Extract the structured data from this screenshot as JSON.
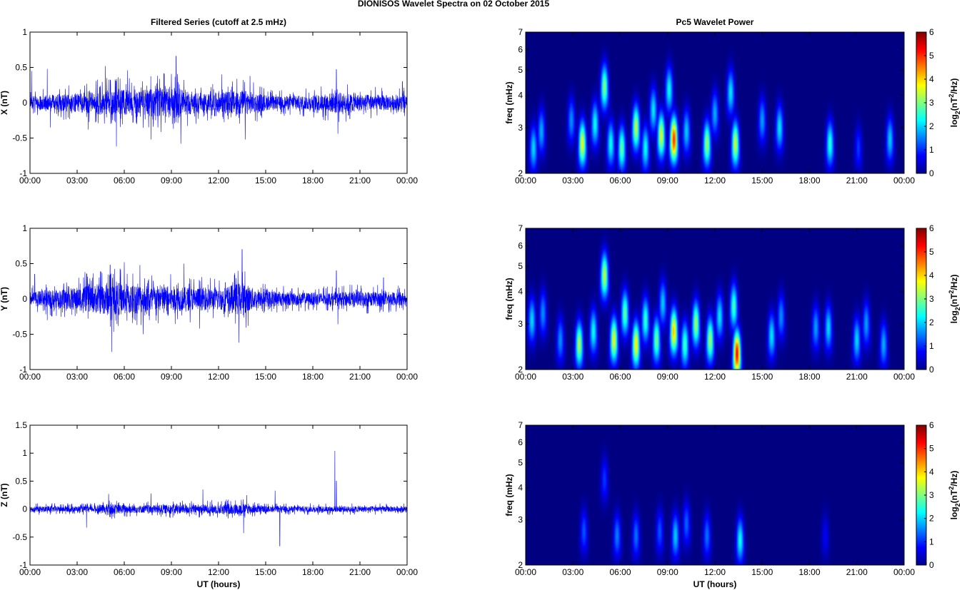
{
  "figure": {
    "title": "DIONISOS Wavelet Spectra on 02 October   2015",
    "left_title": "Filtered Series (cutoff at 2.5 mHz)",
    "right_title": "Pc5 Wavelet Power",
    "xlabel": "UT (hours)"
  },
  "colors": {
    "series_line": "#0000ff",
    "spectrogram_background": "#00008f",
    "colormap": "jet"
  },
  "chart_data": [
    {
      "type": "line",
      "panel": "X",
      "ylabel": "X (nT)",
      "ylim": [
        -1,
        1
      ],
      "yticks": [
        "1",
        "0.5",
        "0",
        "-0.5",
        "-1"
      ],
      "xlim": [
        0,
        24
      ],
      "xticks": [
        "00:00",
        "03:00",
        "06:00",
        "09:00",
        "12:00",
        "15:00",
        "18:00",
        "21:00",
        "00:00"
      ],
      "baseline_amplitude": 0.15,
      "activity": [
        [
          0,
          0.12
        ],
        [
          3,
          0.18
        ],
        [
          5,
          0.25
        ],
        [
          6,
          0.24
        ],
        [
          8,
          0.27
        ],
        [
          9.5,
          0.3
        ],
        [
          11,
          0.16
        ],
        [
          13.5,
          0.24
        ],
        [
          15.5,
          0.12
        ],
        [
          18,
          0.14
        ],
        [
          19.5,
          0.2
        ],
        [
          21,
          0.16
        ],
        [
          24,
          0.14
        ]
      ],
      "peaks": [
        [
          0.1,
          0.45
        ],
        [
          1.1,
          0.48
        ],
        [
          1.3,
          -0.35
        ],
        [
          3.7,
          -0.38
        ],
        [
          4.8,
          0.52
        ],
        [
          5.5,
          -0.62
        ],
        [
          6.2,
          0.46
        ],
        [
          7.7,
          -0.52
        ],
        [
          9.3,
          0.66
        ],
        [
          9.6,
          -0.58
        ],
        [
          12.2,
          0.4
        ],
        [
          13.7,
          -0.52
        ],
        [
          14,
          0.38
        ],
        [
          19.5,
          0.47
        ],
        [
          19.6,
          -0.44
        ],
        [
          23.7,
          0.3
        ]
      ]
    },
    {
      "type": "line",
      "panel": "Y",
      "ylabel": "Y (nT)",
      "ylim": [
        -1,
        1
      ],
      "yticks": [
        "1",
        "0.5",
        "0",
        "-0.5",
        "-1"
      ],
      "xlim": [
        0,
        24
      ],
      "xticks": [
        "00:00",
        "03:00",
        "06:00",
        "09:00",
        "12:00",
        "15:00",
        "18:00",
        "21:00",
        "00:00"
      ],
      "baseline_amplitude": 0.15,
      "activity": [
        [
          0,
          0.13
        ],
        [
          2,
          0.18
        ],
        [
          4,
          0.26
        ],
        [
          5,
          0.32
        ],
        [
          6,
          0.3
        ],
        [
          7.5,
          0.26
        ],
        [
          9,
          0.24
        ],
        [
          10.5,
          0.22
        ],
        [
          12,
          0.2
        ],
        [
          13.5,
          0.32
        ],
        [
          14.5,
          0.16
        ],
        [
          17,
          0.12
        ],
        [
          19.5,
          0.12
        ],
        [
          21,
          0.15
        ],
        [
          24,
          0.12
        ]
      ],
      "peaks": [
        [
          0.3,
          0.35
        ],
        [
          1.1,
          -0.3
        ],
        [
          3.5,
          0.38
        ],
        [
          5.2,
          -0.75
        ],
        [
          5.1,
          0.48
        ],
        [
          6.0,
          0.52
        ],
        [
          7.0,
          0.48
        ],
        [
          7.2,
          -0.5
        ],
        [
          9.8,
          0.5
        ],
        [
          10.8,
          -0.42
        ],
        [
          13.5,
          0.7
        ],
        [
          13.3,
          -0.62
        ],
        [
          19.5,
          0.4
        ],
        [
          19.6,
          -0.36
        ],
        [
          22.5,
          0.3
        ],
        [
          24,
          -0.15
        ]
      ]
    },
    {
      "type": "line",
      "panel": "Z",
      "ylabel": "Z (nT)",
      "ylim": [
        -1,
        1.5
      ],
      "yticks": [
        "1.5",
        "1",
        "0.5",
        "0",
        "-0.5",
        "-1"
      ],
      "xlim": [
        0,
        24
      ],
      "xticks": [
        "00:00",
        "03:00",
        "06:00",
        "09:00",
        "12:00",
        "15:00",
        "18:00",
        "21:00",
        "00:00"
      ],
      "xlabel": "UT (hours)",
      "baseline_amplitude": 0.06,
      "activity": [
        [
          0,
          0.07
        ],
        [
          4,
          0.07
        ],
        [
          5,
          0.12
        ],
        [
          7,
          0.09
        ],
        [
          9,
          0.11
        ],
        [
          10.5,
          0.1
        ],
        [
          13.5,
          0.13
        ],
        [
          15,
          0.07
        ],
        [
          24,
          0.07
        ]
      ],
      "peaks": [
        [
          3.6,
          -0.33
        ],
        [
          5,
          0.27
        ],
        [
          7.7,
          0.28
        ],
        [
          11,
          0.35
        ],
        [
          13.6,
          -0.43
        ],
        [
          13.8,
          0.25
        ],
        [
          15.6,
          0.33
        ],
        [
          15.9,
          -0.66
        ],
        [
          19.4,
          1.04
        ],
        [
          19.5,
          0.5
        ]
      ]
    },
    {
      "type": "heatmap",
      "panel": "X wavelet",
      "ylabel": "freq (mHz)",
      "yscale": "log",
      "ylim": [
        2,
        7
      ],
      "yticks": [
        "7",
        "6",
        "5",
        "4",
        "3",
        "2"
      ],
      "xlim": [
        0,
        24
      ],
      "xticks": [
        "00:00",
        "03:00",
        "06:00",
        "09:00",
        "12:00",
        "15:00",
        "18:00",
        "21:00",
        "00:00"
      ],
      "colorbar_label": "log2(nT²/Hz)",
      "clim": [
        0,
        6
      ],
      "cticks": [
        "6",
        "5",
        "4",
        "3",
        "2",
        "1",
        "0"
      ],
      "blobs": [
        [
          0.5,
          2.5,
          2.3
        ],
        [
          1.0,
          2.9,
          2.0
        ],
        [
          2.9,
          3.2,
          1.8
        ],
        [
          3.6,
          2.6,
          4.1
        ],
        [
          4.4,
          3.1,
          2.6
        ],
        [
          5.0,
          4.3,
          3.4
        ],
        [
          5.4,
          2.6,
          2.6
        ],
        [
          6.1,
          2.5,
          3.2
        ],
        [
          7.0,
          3.0,
          3.8
        ],
        [
          7.6,
          2.5,
          2.6
        ],
        [
          8.1,
          3.5,
          2.4
        ],
        [
          8.6,
          2.8,
          4.0
        ],
        [
          9.4,
          2.7,
          5.6
        ],
        [
          9.1,
          4.2,
          2.6
        ],
        [
          10.2,
          2.9,
          2.2
        ],
        [
          11.5,
          2.6,
          3.6
        ],
        [
          12.0,
          3.4,
          2.0
        ],
        [
          13.0,
          4.1,
          2.4
        ],
        [
          13.3,
          2.6,
          3.9
        ],
        [
          15.0,
          3.2,
          1.9
        ],
        [
          16.1,
          3.0,
          2.4
        ],
        [
          19.3,
          2.6,
          2.8
        ],
        [
          21.1,
          2.5,
          1.2
        ],
        [
          23.1,
          2.7,
          2.2
        ]
      ]
    },
    {
      "type": "heatmap",
      "panel": "Y wavelet",
      "ylabel": "freq (mHz)",
      "yscale": "log",
      "ylim": [
        2,
        7
      ],
      "yticks": [
        "7",
        "6",
        "5",
        "4",
        "3",
        "2"
      ],
      "xlim": [
        0,
        24
      ],
      "xticks": [
        "00:00",
        "03:00",
        "06:00",
        "09:00",
        "12:00",
        "15:00",
        "18:00",
        "21:00",
        "00:00"
      ],
      "colorbar_label": "log2(nT²/Hz)",
      "clim": [
        0,
        6
      ],
      "cticks": [
        "6",
        "5",
        "4",
        "3",
        "2",
        "1",
        "0"
      ],
      "blobs": [
        [
          0.4,
          3.1,
          2.3
        ],
        [
          1.1,
          3.3,
          1.8
        ],
        [
          2.2,
          2.6,
          1.8
        ],
        [
          3.4,
          2.5,
          3.7
        ],
        [
          4.3,
          2.8,
          2.6
        ],
        [
          5.0,
          4.6,
          3.8
        ],
        [
          5.6,
          2.6,
          4.1
        ],
        [
          6.3,
          3.3,
          3.2
        ],
        [
          7.0,
          2.5,
          4.3
        ],
        [
          7.6,
          3.1,
          2.9
        ],
        [
          8.3,
          2.6,
          3.3
        ],
        [
          8.7,
          3.6,
          2.2
        ],
        [
          9.4,
          2.8,
          4.6
        ],
        [
          10.1,
          2.5,
          3.0
        ],
        [
          10.8,
          3.0,
          3.6
        ],
        [
          11.7,
          2.6,
          3.6
        ],
        [
          12.3,
          3.2,
          2.4
        ],
        [
          13.4,
          2.3,
          5.9
        ],
        [
          13.2,
          3.5,
          3.0
        ],
        [
          15.6,
          2.7,
          2.4
        ],
        [
          16.2,
          3.2,
          1.8
        ],
        [
          18.4,
          2.9,
          1.9
        ],
        [
          19.2,
          2.9,
          2.3
        ],
        [
          21.0,
          2.6,
          2.3
        ],
        [
          21.6,
          3.0,
          1.9
        ],
        [
          22.7,
          2.5,
          2.0
        ]
      ]
    },
    {
      "type": "heatmap",
      "panel": "Z wavelet",
      "ylabel": "freq (mHz)",
      "yscale": "log",
      "ylim": [
        2,
        7
      ],
      "yticks": [
        "7",
        "6",
        "5",
        "4",
        "3",
        "2"
      ],
      "xlim": [
        0,
        24
      ],
      "xticks": [
        "00:00",
        "03:00",
        "06:00",
        "09:00",
        "12:00",
        "15:00",
        "18:00",
        "21:00",
        "00:00"
      ],
      "xlabel": "UT (hours)",
      "colorbar_label": "log2(nT²/Hz)",
      "clim": [
        0,
        6
      ],
      "cticks": [
        "6",
        "5",
        "4",
        "3",
        "2",
        "1",
        "0"
      ],
      "blobs": [
        [
          3.7,
          2.7,
          1.4
        ],
        [
          5.0,
          4.3,
          1.2
        ],
        [
          5.8,
          2.6,
          1.7
        ],
        [
          7.0,
          2.6,
          1.6
        ],
        [
          8.5,
          2.7,
          1.4
        ],
        [
          9.5,
          2.6,
          2.2
        ],
        [
          10.2,
          2.9,
          1.5
        ],
        [
          11.5,
          2.6,
          1.6
        ],
        [
          13.6,
          2.5,
          2.6
        ],
        [
          19.0,
          2.6,
          0.8
        ]
      ]
    }
  ]
}
